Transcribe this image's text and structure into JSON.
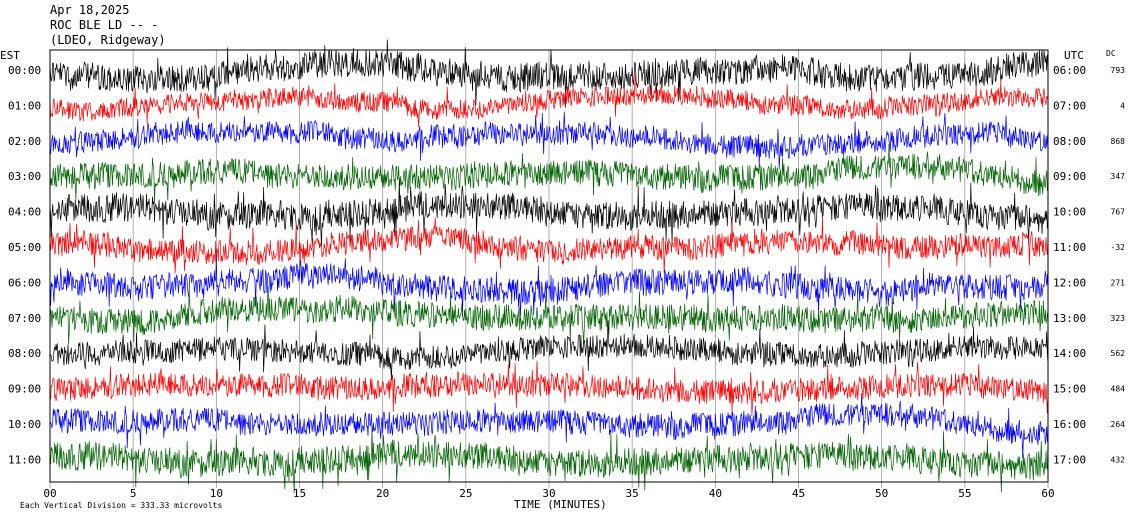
{
  "header": {
    "date": "Apr 18,2025",
    "station": "ROC BLE LD -- -",
    "network": "(LDEO, Ridgeway)"
  },
  "left_axis_title": "EST",
  "right_axis_title": "UTC",
  "dc_title": "DC",
  "x_axis_label": "TIME (MINUTES)",
  "footer_note": "Each Vertical Division = 333.33 microvolts",
  "chart_data": {
    "type": "line",
    "title": "",
    "xlabel": "TIME (MINUTES)",
    "xlim": [
      0,
      60
    ],
    "x_ticks": [
      "00",
      "5",
      "10",
      "15",
      "20",
      "25",
      "30",
      "35",
      "40",
      "45",
      "50",
      "55",
      "60"
    ],
    "grid": "vertical lines every 5 minutes",
    "color_cycle": [
      "#000000",
      "#ff0000",
      "#0000ff",
      "#006400"
    ],
    "rows": [
      {
        "est": "00:00",
        "utc": "06:00",
        "dc": "793",
        "color": "#000000",
        "amp": 14,
        "drift": 6
      },
      {
        "est": "01:00",
        "utc": "07:00",
        "dc": "4",
        "color": "#ff0000",
        "amp": 10,
        "drift": 4
      },
      {
        "est": "02:00",
        "utc": "08:00",
        "dc": "868",
        "color": "#0000ff",
        "amp": 11,
        "drift": 6
      },
      {
        "est": "03:00",
        "utc": "09:00",
        "dc": "347",
        "color": "#006400",
        "amp": 13,
        "drift": 5
      },
      {
        "est": "04:00",
        "utc": "10:00",
        "dc": "767",
        "color": "#000000",
        "amp": 14,
        "drift": 5
      },
      {
        "est": "05:00",
        "utc": "11:00",
        "dc": "-32",
        "color": "#ff0000",
        "amp": 12,
        "drift": 4
      },
      {
        "est": "06:00",
        "utc": "12:00",
        "dc": "271",
        "color": "#0000ff",
        "amp": 13,
        "drift": 6
      },
      {
        "est": "07:00",
        "utc": "13:00",
        "dc": "323",
        "color": "#006400",
        "amp": 13,
        "drift": 4
      },
      {
        "est": "08:00",
        "utc": "14:00",
        "dc": "562",
        "color": "#000000",
        "amp": 12,
        "drift": 3
      },
      {
        "est": "09:00",
        "utc": "15:00",
        "dc": "484",
        "color": "#ff0000",
        "amp": 12,
        "drift": 3
      },
      {
        "est": "10:00",
        "utc": "16:00",
        "dc": "264",
        "color": "#0000ff",
        "amp": 12,
        "drift": 5
      },
      {
        "est": "11:00",
        "utc": "17:00",
        "dc": "432",
        "color": "#006400",
        "amp": 14,
        "drift": 4
      }
    ]
  }
}
